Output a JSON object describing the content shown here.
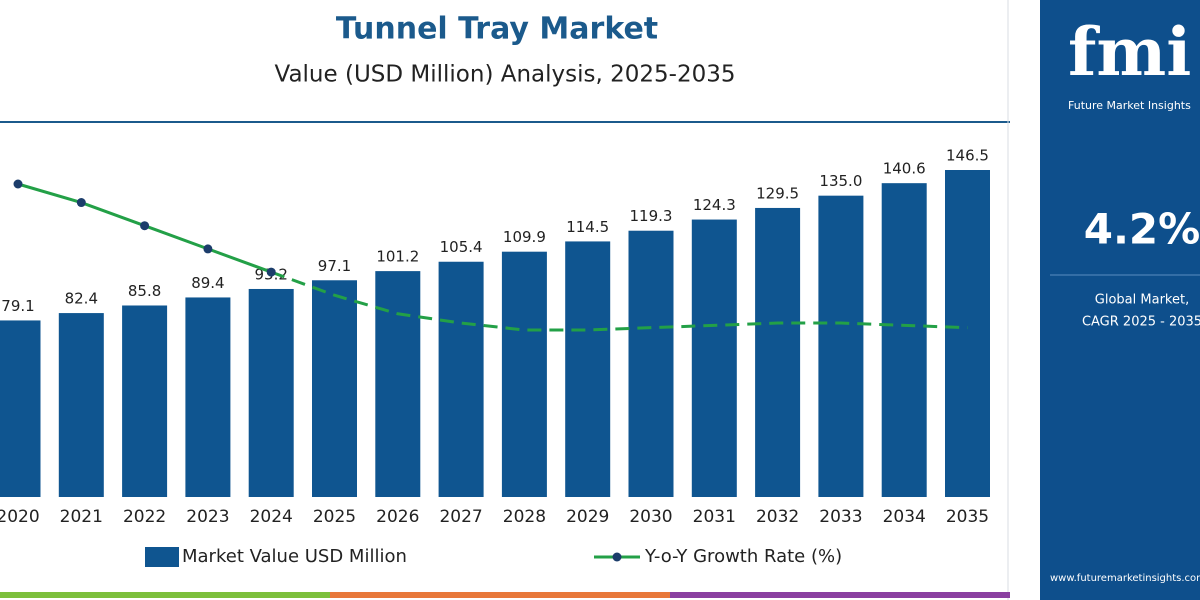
{
  "chart_data": {
    "type": "bar",
    "title": "Tunnel Tray Market",
    "subtitle": "Value (USD Million) Analysis, 2025-2035",
    "categories": [
      "2020",
      "2021",
      "2022",
      "2023",
      "2024",
      "2025",
      "2026",
      "2027",
      "2028",
      "2029",
      "2030",
      "2031",
      "2032",
      "2033",
      "2034",
      "2035"
    ],
    "series": [
      {
        "name": "Market Value USD Million",
        "type": "bar",
        "color": "#0f5590",
        "values": [
          79.1,
          82.4,
          85.8,
          89.4,
          93.2,
          97.1,
          101.2,
          105.4,
          109.9,
          114.5,
          119.3,
          124.3,
          129.5,
          135.0,
          140.6,
          146.5
        ],
        "value_labels": [
          "79.1",
          "82.4",
          "85.8",
          "89.4",
          "93.2",
          "97.1",
          "101.2",
          "105.4",
          "109.9",
          "114.5",
          "119.3",
          "124.3",
          "129.5",
          "135.0",
          "140.6",
          "146.5"
        ]
      },
      {
        "name": "Y-o-Y Growth Rate (%)",
        "type": "line",
        "color": "#23a047",
        "marker_color": "#1c3d6b",
        "values": [
          6.0,
          5.6,
          5.1,
          4.6,
          4.1,
          3.6,
          3.2,
          3.0,
          2.85,
          2.85,
          2.9,
          2.95,
          3.0,
          3.0,
          2.95,
          2.9
        ]
      }
    ]
  },
  "sidebar": {
    "logo": "fmi",
    "brand": "Future Market Insights",
    "cagr": "4.2%",
    "caption_lines": [
      "Global Market,",
      "CAGR 2025 - 2035"
    ],
    "website": "www.futuremarketinsights.com"
  }
}
